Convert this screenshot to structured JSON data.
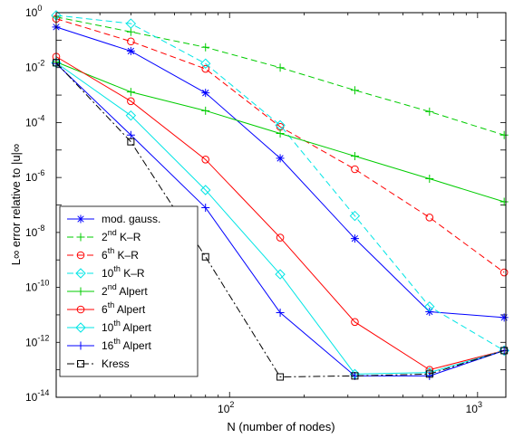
{
  "chart_data": {
    "type": "line",
    "xlabel": "N (number of nodes)",
    "ylabel": "L∞ error relative to |u|∞",
    "xscale": "log",
    "yscale": "log",
    "xlim": [
      20,
      1300
    ],
    "ylim": [
      1e-14,
      1
    ],
    "x_ticks": [
      {
        "value": 100,
        "base": "10",
        "exp": "2"
      },
      {
        "value": 1000,
        "base": "10",
        "exp": "3"
      }
    ],
    "y_ticks": [
      {
        "value": 1,
        "base": "10",
        "exp": "0"
      },
      {
        "value": 0.01,
        "base": "10",
        "exp": "-2"
      },
      {
        "value": 0.0001,
        "base": "10",
        "exp": "-4"
      },
      {
        "value": 1e-06,
        "base": "10",
        "exp": "-6"
      },
      {
        "value": 1e-08,
        "base": "10",
        "exp": "-8"
      },
      {
        "value": 1e-10,
        "base": "10",
        "exp": "-10"
      },
      {
        "value": 1e-12,
        "base": "10",
        "exp": "-12"
      },
      {
        "value": 1e-14,
        "base": "10",
        "exp": "-14"
      }
    ],
    "grid": false,
    "legend_position": "bottom-left",
    "series": [
      {
        "key": "mod-gauss",
        "label_main": "mod. gauss.",
        "label_sup": "",
        "label_suffix": "",
        "color": "#0000ff",
        "dash": "",
        "marker": "star",
        "x": [
          20,
          40,
          80,
          160,
          320,
          640,
          1280
        ],
        "y": [
          0.3,
          0.04,
          0.0012,
          5e-06,
          6e-09,
          1.3e-11,
          8e-12
        ]
      },
      {
        "key": "kr2",
        "label_main": "2",
        "label_sup": "nd",
        "label_suffix": " K–R",
        "color": "#00cc00",
        "dash": "7,4",
        "marker": "plus",
        "x": [
          20,
          40,
          80,
          160,
          320,
          640,
          1280
        ],
        "y": [
          0.7,
          0.2,
          0.055,
          0.01,
          0.0015,
          0.00025,
          3.5e-05
        ]
      },
      {
        "key": "kr6",
        "label_main": "6",
        "label_sup": "th",
        "label_suffix": " K–R",
        "color": "#ff0000",
        "dash": "7,4",
        "marker": "circle",
        "x": [
          20,
          40,
          80,
          160,
          320,
          640,
          1280
        ],
        "y": [
          0.6,
          0.09,
          0.009,
          7e-05,
          2e-06,
          3.5e-08,
          3.5e-10
        ]
      },
      {
        "key": "kr10",
        "label_main": "10",
        "label_sup": "th",
        "label_suffix": " K–R",
        "color": "#00e5e5",
        "dash": "7,4",
        "marker": "diamond",
        "x": [
          20,
          40,
          80,
          160,
          320,
          640,
          1280
        ],
        "y": [
          0.8,
          0.4,
          0.014,
          8e-05,
          4e-08,
          2e-11,
          5e-13
        ]
      },
      {
        "key": "alpert2",
        "label_main": "2",
        "label_sup": "nd",
        "label_suffix": " Alpert",
        "color": "#00cc00",
        "dash": "",
        "marker": "plus",
        "x": [
          20,
          40,
          80,
          160,
          320,
          640,
          1280
        ],
        "y": [
          0.016,
          0.0013,
          0.00027,
          4e-05,
          6e-06,
          9e-07,
          1.3e-07
        ]
      },
      {
        "key": "alpert6",
        "label_main": "6",
        "label_sup": "th",
        "label_suffix": " Alpert",
        "color": "#ff0000",
        "dash": "",
        "marker": "circle",
        "x": [
          20,
          40,
          80,
          160,
          320,
          640,
          1280
        ],
        "y": [
          0.025,
          0.0006,
          4.5e-06,
          6.5e-09,
          5.5e-12,
          1e-13,
          5e-13
        ]
      },
      {
        "key": "alpert10",
        "label_main": "10",
        "label_sup": "th",
        "label_suffix": " Alpert",
        "color": "#00e5e5",
        "dash": "",
        "marker": "diamond",
        "x": [
          20,
          40,
          80,
          160,
          320,
          640,
          1280
        ],
        "y": [
          0.015,
          0.00018,
          3.5e-07,
          3e-10,
          7e-14,
          8e-14,
          5e-13
        ]
      },
      {
        "key": "alpert16",
        "label_main": "16",
        "label_sup": "th",
        "label_suffix": " Alpert",
        "color": "#0000ff",
        "dash": "",
        "marker": "plus",
        "x": [
          20,
          40,
          80,
          160,
          320,
          640,
          1280
        ],
        "y": [
          0.014,
          3.5e-05,
          8e-08,
          1.2e-11,
          6e-14,
          6e-14,
          5e-13
        ]
      },
      {
        "key": "kress",
        "label_main": "Kress",
        "label_sup": "",
        "label_suffix": "",
        "color": "#000000",
        "dash": "8,3,2,3",
        "marker": "square",
        "x": [
          20,
          40,
          80,
          160,
          320,
          640,
          1280
        ],
        "y": [
          0.015,
          2e-05,
          1.3e-09,
          5.5e-14,
          6e-14,
          7e-14,
          5e-13
        ]
      }
    ]
  }
}
